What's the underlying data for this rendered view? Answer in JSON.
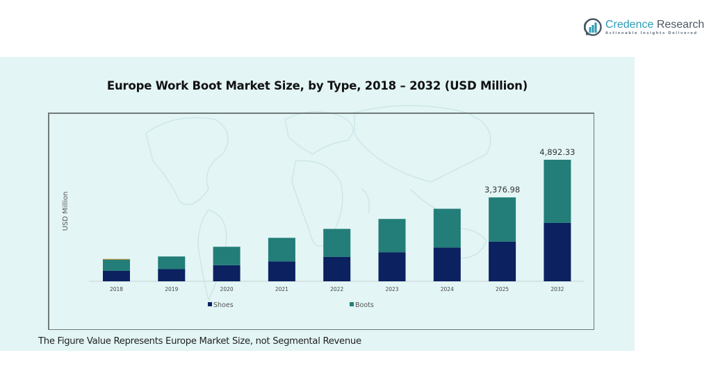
{
  "brand": {
    "name_part1": "Credence",
    "name_part2": " Research",
    "tagline": "Actionable Insights Delivered",
    "icon": "bar-chart-speech-bubble-icon"
  },
  "footnote": "The Figure Value Represents Europe Market Size, not Segmental Revenue",
  "colors": {
    "shoes": "#0b2160",
    "boots": "#237d78",
    "other": "#b08a2e",
    "panel_bg": "#e3f5f5"
  },
  "chart_data": {
    "type": "bar",
    "stacked": true,
    "title": "Europe Work Boot Market Size, by Type, 2018 – 2032 (USD Million)",
    "xlabel": "",
    "ylabel": "USD Million",
    "categories": [
      "2018",
      "2019",
      "2020",
      "2021",
      "2022",
      "2023",
      "2024",
      "2025",
      "2032"
    ],
    "series": [
      {
        "name": "Shoes",
        "values": [
          420,
          490,
          650,
          800,
          980,
          1170,
          1360,
          1600,
          2350
        ]
      },
      {
        "name": "Boots",
        "values": [
          450,
          510,
          740,
          950,
          1130,
          1340,
          1560,
          1776.98,
          2542.33
        ]
      },
      {
        "name": "Other",
        "values": [
          30,
          0,
          0,
          0,
          0,
          0,
          0,
          0,
          0
        ],
        "show_in_legend": false
      }
    ],
    "data_labels": [
      {
        "category": "2025",
        "text": "3,376.98"
      },
      {
        "category": "2032",
        "text": "4,892.33"
      }
    ],
    "legend": {
      "entries": [
        "Shoes",
        "Boots"
      ],
      "placement": "bottom"
    },
    "grid": false,
    "y_axis_visible": false
  }
}
